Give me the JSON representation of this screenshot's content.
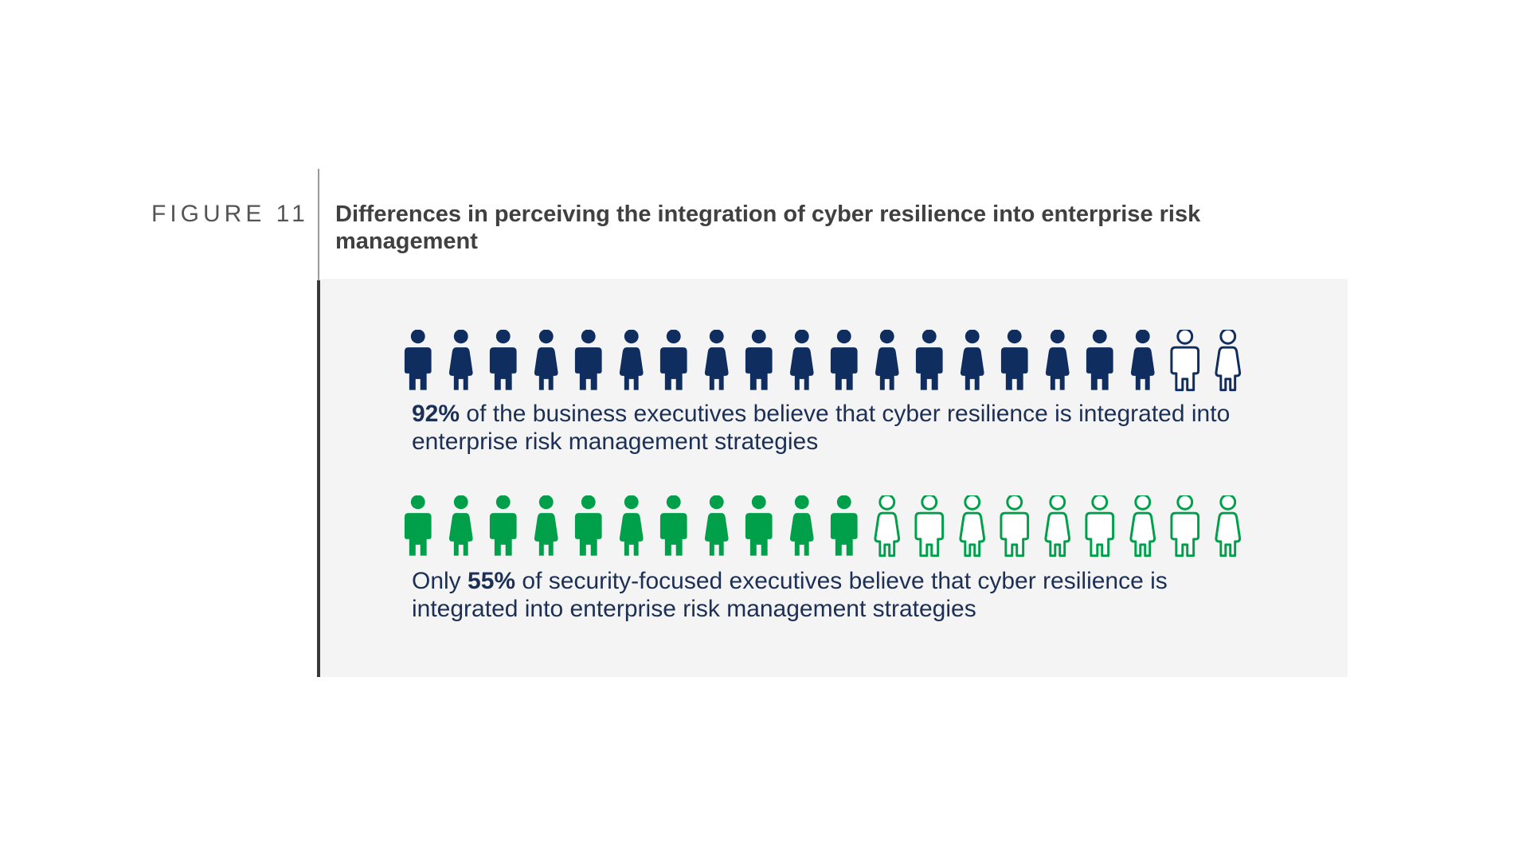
{
  "figure": {
    "label": "FIGURE 11",
    "title": "Differences in perceiving the integration of cyber resilience into enterprise risk management"
  },
  "colors": {
    "navy": "#0f2d5e",
    "green": "#00a04b",
    "panel_bg": "#f4f4f4"
  },
  "chart_data": {
    "type": "pictogram",
    "icons_per_row": 20,
    "series": [
      {
        "value": 92,
        "unit": "%",
        "filled_icons": 18,
        "total_icons": 20,
        "color": "#0f2d5e",
        "caption_prefix": "",
        "caption_value": "92%",
        "caption_suffix": " of the business executives believe that cyber resilience is integrated into enterprise risk management strategies"
      },
      {
        "value": 55,
        "unit": "%",
        "filled_icons": 11,
        "total_icons": 20,
        "color": "#00a04b",
        "caption_prefix": "Only ",
        "caption_value": "55%",
        "caption_suffix": " of security-focused executives believe that cyber resilience is integrated into enterprise risk management strategies"
      }
    ]
  }
}
